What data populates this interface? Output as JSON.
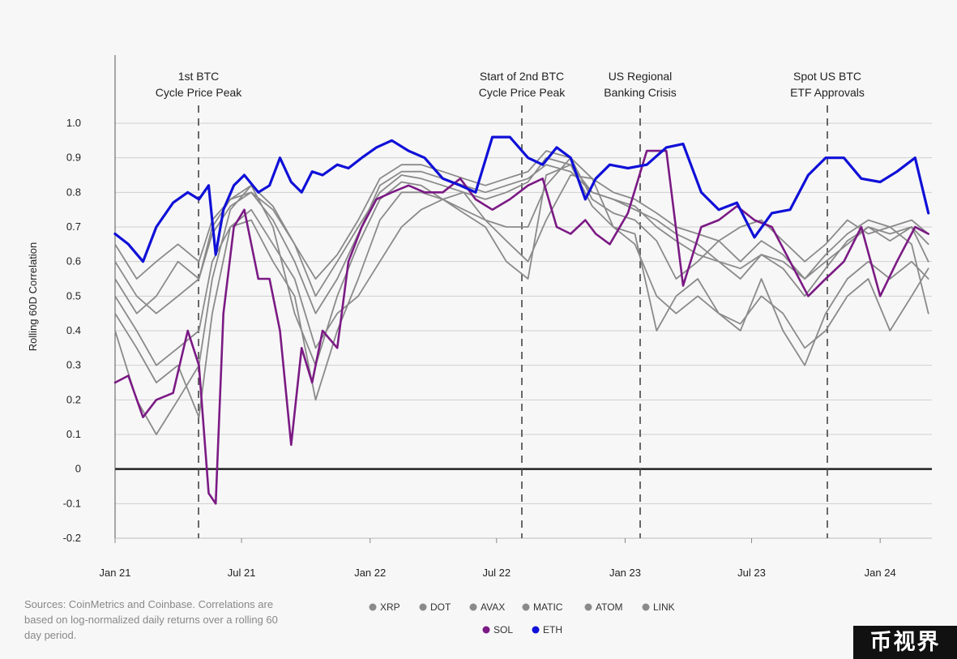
{
  "chart_data": {
    "type": "line",
    "ylabel": "Rolling 60D Correlation",
    "xlabel": "",
    "ylim": [
      -0.2,
      1.05
    ],
    "y_ticks": [
      "1.0",
      "0.9",
      "0.8",
      "0.7",
      "0.6",
      "0.5",
      "0.4",
      "0.3",
      "0.2",
      "0.1",
      "0",
      "-0.1",
      "-0.2"
    ],
    "x_ticks": [
      {
        "label": "Jan 21",
        "date": "2021-01-01"
      },
      {
        "label": "Jul 21",
        "date": "2021-07-01"
      },
      {
        "label": "Jan 22",
        "date": "2022-01-01"
      },
      {
        "label": "Jul 22",
        "date": "2022-07-01"
      },
      {
        "label": "Jan 23",
        "date": "2023-01-01"
      },
      {
        "label": "Jul 23",
        "date": "2023-07-01"
      },
      {
        "label": "Jan 24",
        "date": "2024-01-01"
      }
    ],
    "grid": true,
    "zero_line": true,
    "legend_position": "bottom-center",
    "annotations": [
      {
        "date": "2021-05-10",
        "line1": "1st BTC",
        "line2": "Cycle Price Peak"
      },
      {
        "date": "2022-01-01",
        "line1": "Start of 2nd BTC",
        "line2": "Cycle Price Peak",
        "hidden": true
      },
      {
        "date": "2022-11-10",
        "line1": "Start of 2nd BTC",
        "line2": "Cycle Price Peak"
      },
      {
        "date": "2023-03-10",
        "line1": "US Regional",
        "line2": "Banking Crisis"
      },
      {
        "date": "2024-01-10",
        "line1": "Spot US BTC",
        "line2": "ETF Approvals"
      }
    ],
    "series": [
      {
        "name": "XRP",
        "color": "#8a8a8a",
        "x": [
          "2021-01-01",
          "2021-02-01",
          "2021-03-01",
          "2021-04-01",
          "2021-05-01",
          "2021-05-20",
          "2021-06-15",
          "2021-07-15",
          "2021-08-15",
          "2021-09-15",
          "2021-10-15",
          "2021-11-15",
          "2021-12-15",
          "2022-01-15",
          "2022-02-15",
          "2022-03-15",
          "2022-04-15",
          "2022-05-15",
          "2022-06-15",
          "2022-07-15",
          "2022-08-15",
          "2022-09-10",
          "2022-10-15",
          "2022-11-15",
          "2022-12-15",
          "2023-01-15",
          "2023-02-15",
          "2023-03-15",
          "2023-04-15",
          "2023-05-15",
          "2023-06-15",
          "2023-07-15",
          "2023-08-15",
          "2023-09-15",
          "2023-10-15",
          "2023-11-15",
          "2023-12-15",
          "2024-01-15",
          "2024-02-15",
          "2024-03-10"
        ],
        "values": [
          0.45,
          0.35,
          0.25,
          0.3,
          0.15,
          0.45,
          0.7,
          0.75,
          0.65,
          0.55,
          0.35,
          0.45,
          0.5,
          0.6,
          0.7,
          0.75,
          0.78,
          0.8,
          0.72,
          0.66,
          0.6,
          0.72,
          0.85,
          0.84,
          0.7,
          0.65,
          0.5,
          0.45,
          0.5,
          0.45,
          0.4,
          0.55,
          0.4,
          0.3,
          0.45,
          0.55,
          0.6,
          0.55,
          0.6,
          0.55
        ]
      },
      {
        "name": "DOT",
        "color": "#8a8a8a",
        "x": [
          "2021-01-01",
          "2021-02-01",
          "2021-03-01",
          "2021-04-01",
          "2021-05-01",
          "2021-05-20",
          "2021-06-15",
          "2021-07-15",
          "2021-08-15",
          "2021-09-15",
          "2021-10-15",
          "2021-11-15",
          "2021-12-15",
          "2022-01-15",
          "2022-02-15",
          "2022-03-15",
          "2022-04-15",
          "2022-05-15",
          "2022-06-15",
          "2022-07-15",
          "2022-08-15",
          "2022-09-10",
          "2022-10-15",
          "2022-11-15",
          "2022-12-15",
          "2023-01-15",
          "2023-02-15",
          "2023-03-15",
          "2023-04-15",
          "2023-05-15",
          "2023-06-15",
          "2023-07-15",
          "2023-08-15",
          "2023-09-15",
          "2023-10-15",
          "2023-11-15",
          "2023-12-15",
          "2024-01-15",
          "2024-02-15",
          "2024-03-10"
        ],
        "values": [
          0.55,
          0.45,
          0.5,
          0.6,
          0.55,
          0.7,
          0.78,
          0.8,
          0.75,
          0.65,
          0.5,
          0.6,
          0.7,
          0.8,
          0.85,
          0.84,
          0.82,
          0.8,
          0.78,
          0.8,
          0.83,
          0.9,
          0.88,
          0.8,
          0.78,
          0.75,
          0.72,
          0.68,
          0.65,
          0.6,
          0.58,
          0.62,
          0.6,
          0.55,
          0.6,
          0.65,
          0.7,
          0.68,
          0.7,
          0.6
        ]
      },
      {
        "name": "AVAX",
        "color": "#8a8a8a",
        "x": [
          "2021-01-01",
          "2021-02-01",
          "2021-03-01",
          "2021-04-01",
          "2021-05-01",
          "2021-05-20",
          "2021-06-15",
          "2021-07-15",
          "2021-08-15",
          "2021-09-15",
          "2021-10-15",
          "2021-11-15",
          "2021-12-15",
          "2022-01-15",
          "2022-02-15",
          "2022-03-15",
          "2022-04-15",
          "2022-05-15",
          "2022-06-15",
          "2022-07-15",
          "2022-08-15",
          "2022-09-10",
          "2022-10-15",
          "2022-11-15",
          "2022-12-15",
          "2023-01-15",
          "2023-02-15",
          "2023-03-15",
          "2023-04-15",
          "2023-05-15",
          "2023-06-15",
          "2023-07-15",
          "2023-08-15",
          "2023-09-15",
          "2023-10-15",
          "2023-11-15",
          "2023-12-15",
          "2024-01-15",
          "2024-02-15",
          "2024-03-10"
        ],
        "values": [
          0.4,
          0.2,
          0.1,
          0.2,
          0.3,
          0.55,
          0.75,
          0.82,
          0.7,
          0.45,
          0.3,
          0.5,
          0.65,
          0.78,
          0.83,
          0.82,
          0.78,
          0.75,
          0.72,
          0.7,
          0.7,
          0.82,
          0.9,
          0.78,
          0.74,
          0.72,
          0.66,
          0.55,
          0.6,
          0.66,
          0.7,
          0.72,
          0.66,
          0.6,
          0.65,
          0.72,
          0.68,
          0.7,
          0.65,
          0.45
        ]
      },
      {
        "name": "MATIC",
        "color": "#8a8a8a",
        "x": [
          "2021-01-01",
          "2021-02-01",
          "2021-03-01",
          "2021-04-01",
          "2021-05-01",
          "2021-05-20",
          "2021-06-15",
          "2021-07-15",
          "2021-08-15",
          "2021-09-15",
          "2021-10-15",
          "2021-11-15",
          "2021-12-15",
          "2022-01-15",
          "2022-02-15",
          "2022-03-15",
          "2022-04-15",
          "2022-05-15",
          "2022-06-15",
          "2022-07-15",
          "2022-08-15",
          "2022-09-10",
          "2022-10-15",
          "2022-11-15",
          "2022-12-15",
          "2023-01-15",
          "2023-02-15",
          "2023-03-15",
          "2023-04-15",
          "2023-05-15",
          "2023-06-15",
          "2023-07-15",
          "2023-08-15",
          "2023-09-15",
          "2023-10-15",
          "2023-11-15",
          "2023-12-15",
          "2024-01-15",
          "2024-02-15",
          "2024-03-10"
        ],
        "values": [
          0.5,
          0.4,
          0.3,
          0.35,
          0.4,
          0.6,
          0.7,
          0.72,
          0.6,
          0.5,
          0.2,
          0.4,
          0.55,
          0.72,
          0.8,
          0.8,
          0.78,
          0.74,
          0.7,
          0.6,
          0.55,
          0.85,
          0.88,
          0.76,
          0.7,
          0.68,
          0.4,
          0.5,
          0.55,
          0.45,
          0.42,
          0.5,
          0.45,
          0.35,
          0.4,
          0.5,
          0.55,
          0.4,
          0.5,
          0.58
        ]
      },
      {
        "name": "ATOM",
        "color": "#8a8a8a",
        "x": [
          "2021-01-01",
          "2021-02-01",
          "2021-03-01",
          "2021-04-01",
          "2021-05-01",
          "2021-05-20",
          "2021-06-15",
          "2021-07-15",
          "2021-08-15",
          "2021-09-15",
          "2021-10-15",
          "2021-11-15",
          "2021-12-15",
          "2022-01-15",
          "2022-02-15",
          "2022-03-15",
          "2022-04-15",
          "2022-05-15",
          "2022-06-15",
          "2022-07-15",
          "2022-08-15",
          "2022-09-10",
          "2022-10-15",
          "2022-11-15",
          "2022-12-15",
          "2023-01-15",
          "2023-02-15",
          "2023-03-15",
          "2023-04-15",
          "2023-05-15",
          "2023-06-15",
          "2023-07-15",
          "2023-08-15",
          "2023-09-15",
          "2023-10-15",
          "2023-11-15",
          "2023-12-15",
          "2024-01-15",
          "2024-02-15",
          "2024-03-10"
        ],
        "values": [
          0.6,
          0.5,
          0.45,
          0.5,
          0.55,
          0.68,
          0.76,
          0.8,
          0.72,
          0.6,
          0.45,
          0.55,
          0.68,
          0.82,
          0.86,
          0.86,
          0.84,
          0.82,
          0.8,
          0.82,
          0.84,
          0.88,
          0.86,
          0.8,
          0.78,
          0.76,
          0.7,
          0.66,
          0.62,
          0.6,
          0.55,
          0.62,
          0.58,
          0.5,
          0.58,
          0.66,
          0.7,
          0.66,
          0.7,
          0.65
        ]
      },
      {
        "name": "LINK",
        "color": "#8a8a8a",
        "x": [
          "2021-01-01",
          "2021-02-01",
          "2021-03-01",
          "2021-04-01",
          "2021-05-01",
          "2021-05-20",
          "2021-06-15",
          "2021-07-15",
          "2021-08-15",
          "2021-09-15",
          "2021-10-15",
          "2021-11-15",
          "2021-12-15",
          "2022-01-15",
          "2022-02-15",
          "2022-03-15",
          "2022-04-15",
          "2022-05-15",
          "2022-06-15",
          "2022-07-15",
          "2022-08-15",
          "2022-09-10",
          "2022-10-15",
          "2022-11-15",
          "2022-12-15",
          "2023-01-15",
          "2023-02-15",
          "2023-03-15",
          "2023-04-15",
          "2023-05-15",
          "2023-06-15",
          "2023-07-15",
          "2023-08-15",
          "2023-09-15",
          "2023-10-15",
          "2023-11-15",
          "2023-12-15",
          "2024-01-15",
          "2024-02-15",
          "2024-03-10"
        ],
        "values": [
          0.65,
          0.55,
          0.6,
          0.65,
          0.6,
          0.72,
          0.78,
          0.82,
          0.76,
          0.65,
          0.55,
          0.62,
          0.72,
          0.84,
          0.88,
          0.88,
          0.86,
          0.84,
          0.82,
          0.84,
          0.86,
          0.92,
          0.9,
          0.84,
          0.8,
          0.78,
          0.74,
          0.7,
          0.68,
          0.66,
          0.6,
          0.66,
          0.62,
          0.55,
          0.62,
          0.68,
          0.72,
          0.7,
          0.72,
          0.68
        ]
      },
      {
        "name": "SOL",
        "color": "#7b1a84",
        "x": [
          "2021-01-01",
          "2021-01-20",
          "2021-02-10",
          "2021-03-01",
          "2021-03-25",
          "2021-04-15",
          "2021-05-01",
          "2021-05-15",
          "2021-05-25",
          "2021-06-05",
          "2021-06-20",
          "2021-07-05",
          "2021-07-25",
          "2021-08-10",
          "2021-08-25",
          "2021-09-10",
          "2021-09-25",
          "2021-10-10",
          "2021-10-25",
          "2021-11-15",
          "2021-12-01",
          "2021-12-20",
          "2022-01-10",
          "2022-02-01",
          "2022-02-25",
          "2022-03-20",
          "2022-04-15",
          "2022-05-10",
          "2022-06-01",
          "2022-06-25",
          "2022-07-20",
          "2022-08-15",
          "2022-09-05",
          "2022-09-25",
          "2022-10-15",
          "2022-11-05",
          "2022-11-20",
          "2022-12-10",
          "2023-01-05",
          "2023-02-01",
          "2023-03-01",
          "2023-03-25",
          "2023-04-20",
          "2023-05-15",
          "2023-06-10",
          "2023-07-05",
          "2023-07-30",
          "2023-08-25",
          "2023-09-20",
          "2023-10-15",
          "2023-11-10",
          "2023-12-05",
          "2024-01-01",
          "2024-01-25",
          "2024-02-20",
          "2024-03-10"
        ],
        "values": [
          0.25,
          0.27,
          0.15,
          0.2,
          0.22,
          0.4,
          0.3,
          -0.07,
          -0.1,
          0.45,
          0.7,
          0.75,
          0.55,
          0.55,
          0.4,
          0.07,
          0.35,
          0.25,
          0.4,
          0.35,
          0.6,
          0.7,
          0.78,
          0.8,
          0.82,
          0.8,
          0.8,
          0.84,
          0.78,
          0.75,
          0.78,
          0.82,
          0.84,
          0.7,
          0.68,
          0.72,
          0.68,
          0.65,
          0.74,
          0.92,
          0.92,
          0.53,
          0.7,
          0.72,
          0.76,
          0.72,
          0.7,
          0.6,
          0.5,
          0.55,
          0.6,
          0.7,
          0.5,
          0.6,
          0.7,
          0.68
        ]
      },
      {
        "name": "ETH",
        "color": "#1010d8",
        "x": [
          "2021-01-01",
          "2021-01-20",
          "2021-02-10",
          "2021-03-01",
          "2021-03-25",
          "2021-04-15",
          "2021-05-01",
          "2021-05-15",
          "2021-05-25",
          "2021-06-05",
          "2021-06-20",
          "2021-07-05",
          "2021-07-25",
          "2021-08-10",
          "2021-08-25",
          "2021-09-10",
          "2021-09-25",
          "2021-10-10",
          "2021-10-25",
          "2021-11-15",
          "2021-12-01",
          "2021-12-20",
          "2022-01-10",
          "2022-02-01",
          "2022-02-25",
          "2022-03-20",
          "2022-04-15",
          "2022-05-10",
          "2022-06-01",
          "2022-06-25",
          "2022-07-20",
          "2022-08-15",
          "2022-09-05",
          "2022-09-25",
          "2022-10-15",
          "2022-11-05",
          "2022-11-20",
          "2022-12-10",
          "2023-01-05",
          "2023-02-01",
          "2023-03-01",
          "2023-03-25",
          "2023-04-20",
          "2023-05-15",
          "2023-06-10",
          "2023-07-05",
          "2023-07-30",
          "2023-08-25",
          "2023-09-20",
          "2023-10-15",
          "2023-11-10",
          "2023-12-05",
          "2024-01-01",
          "2024-01-25",
          "2024-02-20",
          "2024-03-10"
        ],
        "values": [
          0.68,
          0.65,
          0.6,
          0.7,
          0.77,
          0.8,
          0.78,
          0.82,
          0.62,
          0.75,
          0.82,
          0.85,
          0.8,
          0.82,
          0.9,
          0.83,
          0.8,
          0.86,
          0.85,
          0.88,
          0.87,
          0.9,
          0.93,
          0.95,
          0.92,
          0.9,
          0.84,
          0.82,
          0.8,
          0.96,
          0.96,
          0.9,
          0.88,
          0.93,
          0.9,
          0.78,
          0.84,
          0.88,
          0.87,
          0.88,
          0.93,
          0.94,
          0.8,
          0.75,
          0.77,
          0.67,
          0.74,
          0.75,
          0.85,
          0.9,
          0.9,
          0.84,
          0.83,
          0.86,
          0.9,
          0.74
        ]
      }
    ],
    "legend": [
      [
        "XRP",
        "DOT",
        "AVAX",
        "MATIC",
        "ATOM",
        "LINK"
      ],
      [
        "SOL",
        "ETH"
      ]
    ]
  },
  "annotations_text": {
    "a1_line1": "1st BTC",
    "a1_line2": "Cycle Price Peak",
    "a2_line1": "Start of 2nd BTC",
    "a2_line2": "Cycle Price Peak",
    "a3_line1": "US Regional",
    "a3_line2": "Banking Crisis",
    "a4_line1": "Spot US BTC",
    "a4_line2": "ETF Approvals"
  },
  "source_note": "Sources: CoinMetrics and Coinbase. Correlations are based on log-normalized daily returns over a rolling 60 day period.",
  "watermark": "币视界"
}
